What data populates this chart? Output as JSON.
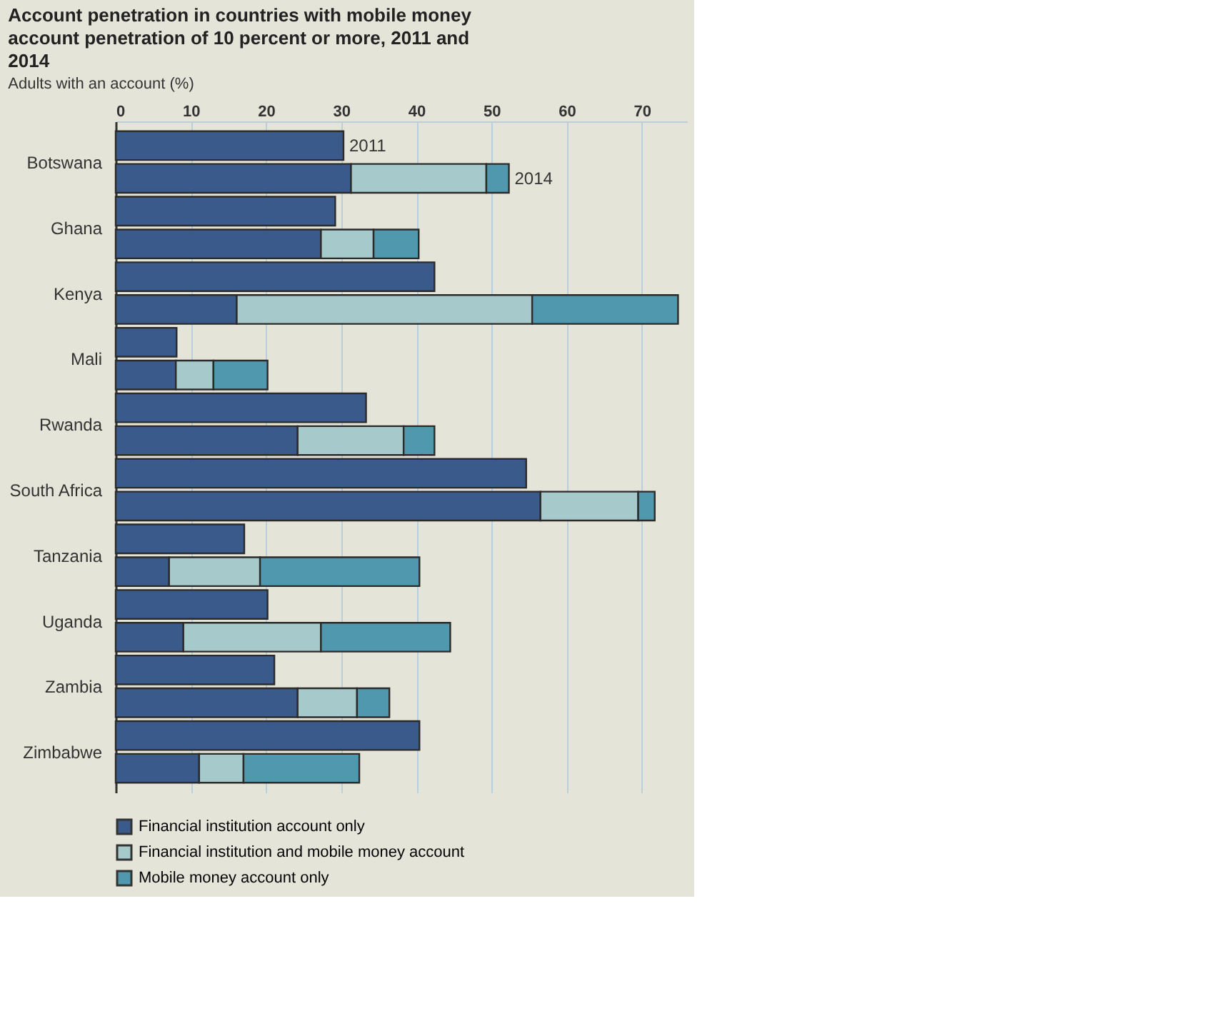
{
  "chart_data": {
    "type": "bar",
    "orientation": "horizontal",
    "stacked": true,
    "title": "Account penetration in countries with mobile money account penetration of 10 percent or more, 2011 and 2014",
    "subtitle": "Adults with an account (%)",
    "categories": [
      "Botswana",
      null,
      "Ghana",
      null,
      "Kenya",
      null,
      "Mali",
      null,
      "Rwanda",
      null,
      "South Africa",
      null,
      "Tanzania",
      null,
      "Uganda",
      null,
      "Zambia",
      null,
      "Zimbabwe",
      null
    ],
    "series": [
      {
        "name": "Financial institution account only",
        "color": "#3a5a8c",
        "values": [
          30.3,
          31.3,
          29.2,
          27.3,
          42.4,
          16.1,
          8.1,
          8.0,
          33.3,
          24.2,
          54.6,
          56.5,
          17.1,
          7.1,
          20.2,
          9.0,
          21.1,
          24.2,
          40.4,
          11.1
        ]
      },
      {
        "name": "Financial institution and mobile money account",
        "color": "#a6cacb",
        "values": [
          null,
          18.0,
          null,
          7.0,
          null,
          39.3,
          null,
          5.0,
          null,
          14.1,
          null,
          13.0,
          null,
          12.1,
          null,
          18.3,
          null,
          7.9,
          null,
          5.9
        ]
      },
      {
        "name": "Mobile money account only",
        "color": "#4f98ad",
        "values": [
          null,
          3.0,
          null,
          6.0,
          null,
          19.4,
          null,
          7.2,
          null,
          4.1,
          null,
          2.2,
          null,
          21.2,
          null,
          17.2,
          null,
          4.3,
          null,
          15.4
        ]
      }
    ],
    "annotations": [
      "2011",
      "2014"
    ],
    "xlim": [
      0,
      76
    ],
    "xticks": [
      0,
      10,
      20,
      30,
      40,
      50,
      60,
      70
    ],
    "grid": "x",
    "legend": "bottom"
  }
}
